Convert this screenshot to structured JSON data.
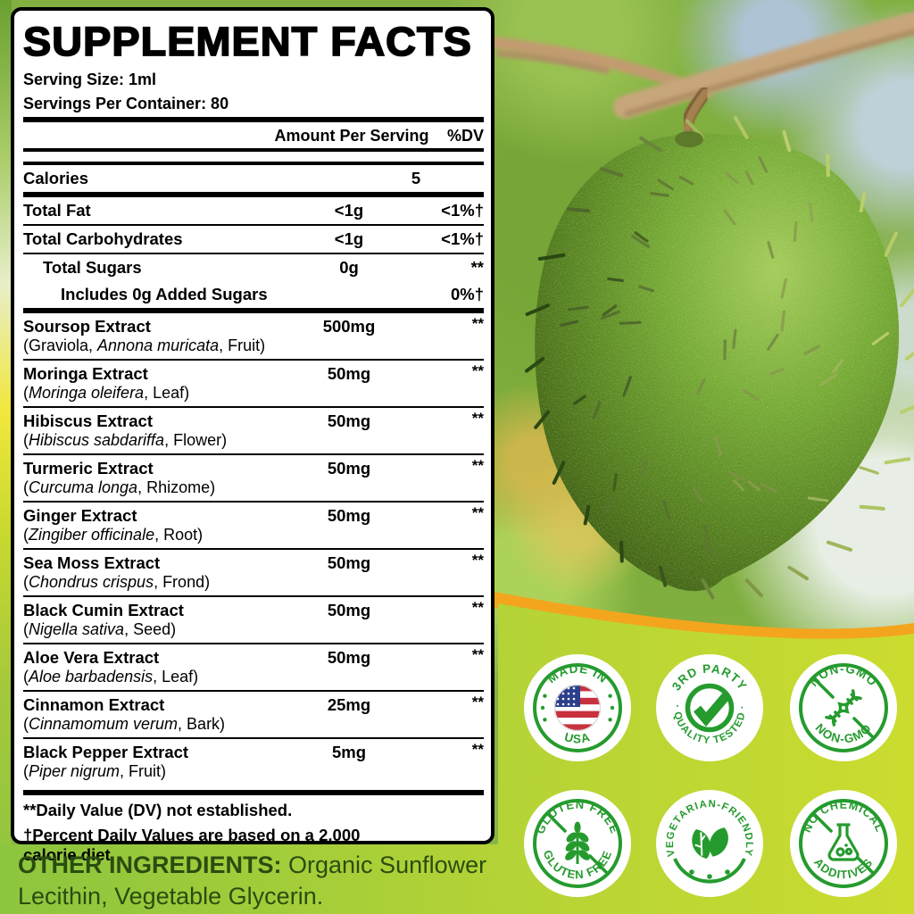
{
  "panel": {
    "title": "SUPPLEMENT FACTS",
    "serving_size": "Serving Size: 1ml",
    "servings_per_container": "Servings Per Container: 80",
    "col_amount": "Amount Per Serving",
    "col_dv": "%DV",
    "nutrients": [
      {
        "name": "Calories",
        "amount": "5",
        "dv": "",
        "indent": 0,
        "rule": "thick"
      },
      {
        "name": "Total Fat",
        "amount": "<1g",
        "dv": "<1%†",
        "indent": 0,
        "rule": "thin"
      },
      {
        "name": "Total Carbohydrates",
        "amount": "<1g",
        "dv": "<1%†",
        "indent": 0,
        "rule": "thin"
      },
      {
        "name": "Total Sugars",
        "amount": "0g",
        "dv": "**",
        "indent": 1,
        "rule": "none"
      },
      {
        "name": "Includes 0g Added Sugars",
        "amount": "",
        "dv": "0%†",
        "indent": 2,
        "rule": "thick"
      }
    ],
    "botanicals": [
      {
        "name": "Soursop Extract",
        "amount": "500mg",
        "dv": "**",
        "latin_pre": "(Graviola, ",
        "latin": "Annona muricata",
        "latin_post": ", Fruit)"
      },
      {
        "name": "Moringa Extract",
        "amount": "50mg",
        "dv": "**",
        "latin_pre": "(",
        "latin": "Moringa oleifera",
        "latin_post": ", Leaf)"
      },
      {
        "name": "Hibiscus Extract",
        "amount": "50mg",
        "dv": "**",
        "latin_pre": "(",
        "latin": "Hibiscus sabdariffa",
        "latin_post": ", Flower)"
      },
      {
        "name": "Turmeric Extract",
        "amount": "50mg",
        "dv": "**",
        "latin_pre": "(",
        "latin": "Curcuma longa",
        "latin_post": ", Rhizome)"
      },
      {
        "name": "Ginger Extract",
        "amount": "50mg",
        "dv": "**",
        "latin_pre": "(",
        "latin": "Zingiber officinale",
        "latin_post": ", Root)"
      },
      {
        "name": "Sea Moss Extract",
        "amount": "50mg",
        "dv": "**",
        "latin_pre": "(",
        "latin": "Chondrus crispus",
        "latin_post": ", Frond)"
      },
      {
        "name": "Black Cumin Extract",
        "amount": "50mg",
        "dv": "**",
        "latin_pre": "(",
        "latin": "Nigella sativa",
        "latin_post": ", Seed)"
      },
      {
        "name": "Aloe Vera Extract",
        "amount": "50mg",
        "dv": "**",
        "latin_pre": "(",
        "latin": "Aloe barbadensis",
        "latin_post": ", Leaf)"
      },
      {
        "name": "Cinnamon Extract",
        "amount": "25mg",
        "dv": "**",
        "latin_pre": "(",
        "latin": "Cinnamomum verum",
        "latin_post": ", Bark)"
      },
      {
        "name": "Black Pepper Extract",
        "amount": "5mg",
        "dv": "**",
        "latin_pre": "(",
        "latin": "Piper nigrum",
        "latin_post": ", Fruit)"
      }
    ],
    "footnotes": [
      "**Daily Value (DV) not established.",
      "†Percent Daily Values are based on a 2,000 calorie diet."
    ]
  },
  "other_ingredients": {
    "label": "OTHER INGREDIENTS:",
    "text": " Organic Sunflower Lecithin, Vegetable Glycerin."
  },
  "badges": [
    {
      "id": "made-in-usa",
      "top": "MADE IN",
      "bottom": "USA",
      "icon": "usa-flag"
    },
    {
      "id": "third-party-tested",
      "top": "3RD PARTY",
      "bottom": "· QUALITY TESTED ·",
      "icon": "checkmark"
    },
    {
      "id": "non-gmo",
      "top": "NON-GMO",
      "bottom": "NON-GMO",
      "icon": "dna-helix"
    },
    {
      "id": "gluten-free",
      "top": "GLUTEN FREE",
      "bottom": "GLUTEN FREE",
      "icon": "wheat-sprig"
    },
    {
      "id": "vegetarian-friendly",
      "top": "VEGETARIAN-FRIENDLY",
      "bottom": "",
      "icon": "leaves"
    },
    {
      "id": "no-chemical-additives",
      "top": "NO CHEMICAL",
      "bottom": "ADDITIVES",
      "icon": "flask"
    }
  ],
  "colors": {
    "badge_green": "#259b2e",
    "wave_orange": "#f3a51e",
    "band_green_left": "#8cc53e",
    "band_green_right": "#cbdc2f",
    "flag_red": "#c8313e",
    "flag_blue": "#2b3f8c",
    "ink": "#000000",
    "other_ingredients_ink": "#2b4c10"
  }
}
